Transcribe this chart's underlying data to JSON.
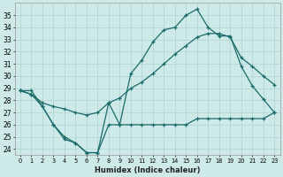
{
  "xlabel": "Humidex (Indice chaleur)",
  "x_ticks": [
    0,
    1,
    2,
    3,
    4,
    5,
    6,
    7,
    8,
    9,
    10,
    11,
    12,
    13,
    14,
    15,
    16,
    17,
    18,
    19,
    20,
    21,
    22,
    23
  ],
  "ylim": [
    23.5,
    36.0
  ],
  "xlim": [
    -0.5,
    23.5
  ],
  "y_ticks": [
    24,
    25,
    26,
    27,
    28,
    29,
    30,
    31,
    32,
    33,
    34,
    35
  ],
  "bg_color": "#ceeae8",
  "line_color": "#1a6b6b",
  "grid_color": "#aed4d2",
  "series": {
    "max": [
      28.8,
      28.8,
      27.5,
      26.0,
      25.0,
      24.5,
      23.7,
      23.7,
      27.8,
      26.0,
      30.2,
      31.3,
      32.8,
      33.8,
      34.0,
      35.0,
      35.5,
      34.0,
      33.3,
      33.3,
      30.8,
      29.2,
      28.1,
      27.0
    ],
    "avg": [
      28.8,
      28.5,
      27.8,
      27.5,
      27.3,
      27.0,
      26.8,
      27.0,
      27.8,
      28.2,
      29.0,
      29.5,
      30.2,
      31.0,
      31.8,
      32.5,
      33.2,
      33.5,
      33.5,
      33.2,
      31.5,
      30.8,
      30.0,
      29.3
    ],
    "min": [
      28.8,
      28.5,
      27.5,
      26.0,
      24.8,
      24.5,
      23.7,
      23.7,
      26.0,
      26.0,
      26.0,
      26.0,
      26.0,
      26.0,
      26.0,
      26.0,
      26.5,
      26.5,
      26.5,
      26.5,
      26.5,
      26.5,
      26.5,
      27.0
    ]
  }
}
